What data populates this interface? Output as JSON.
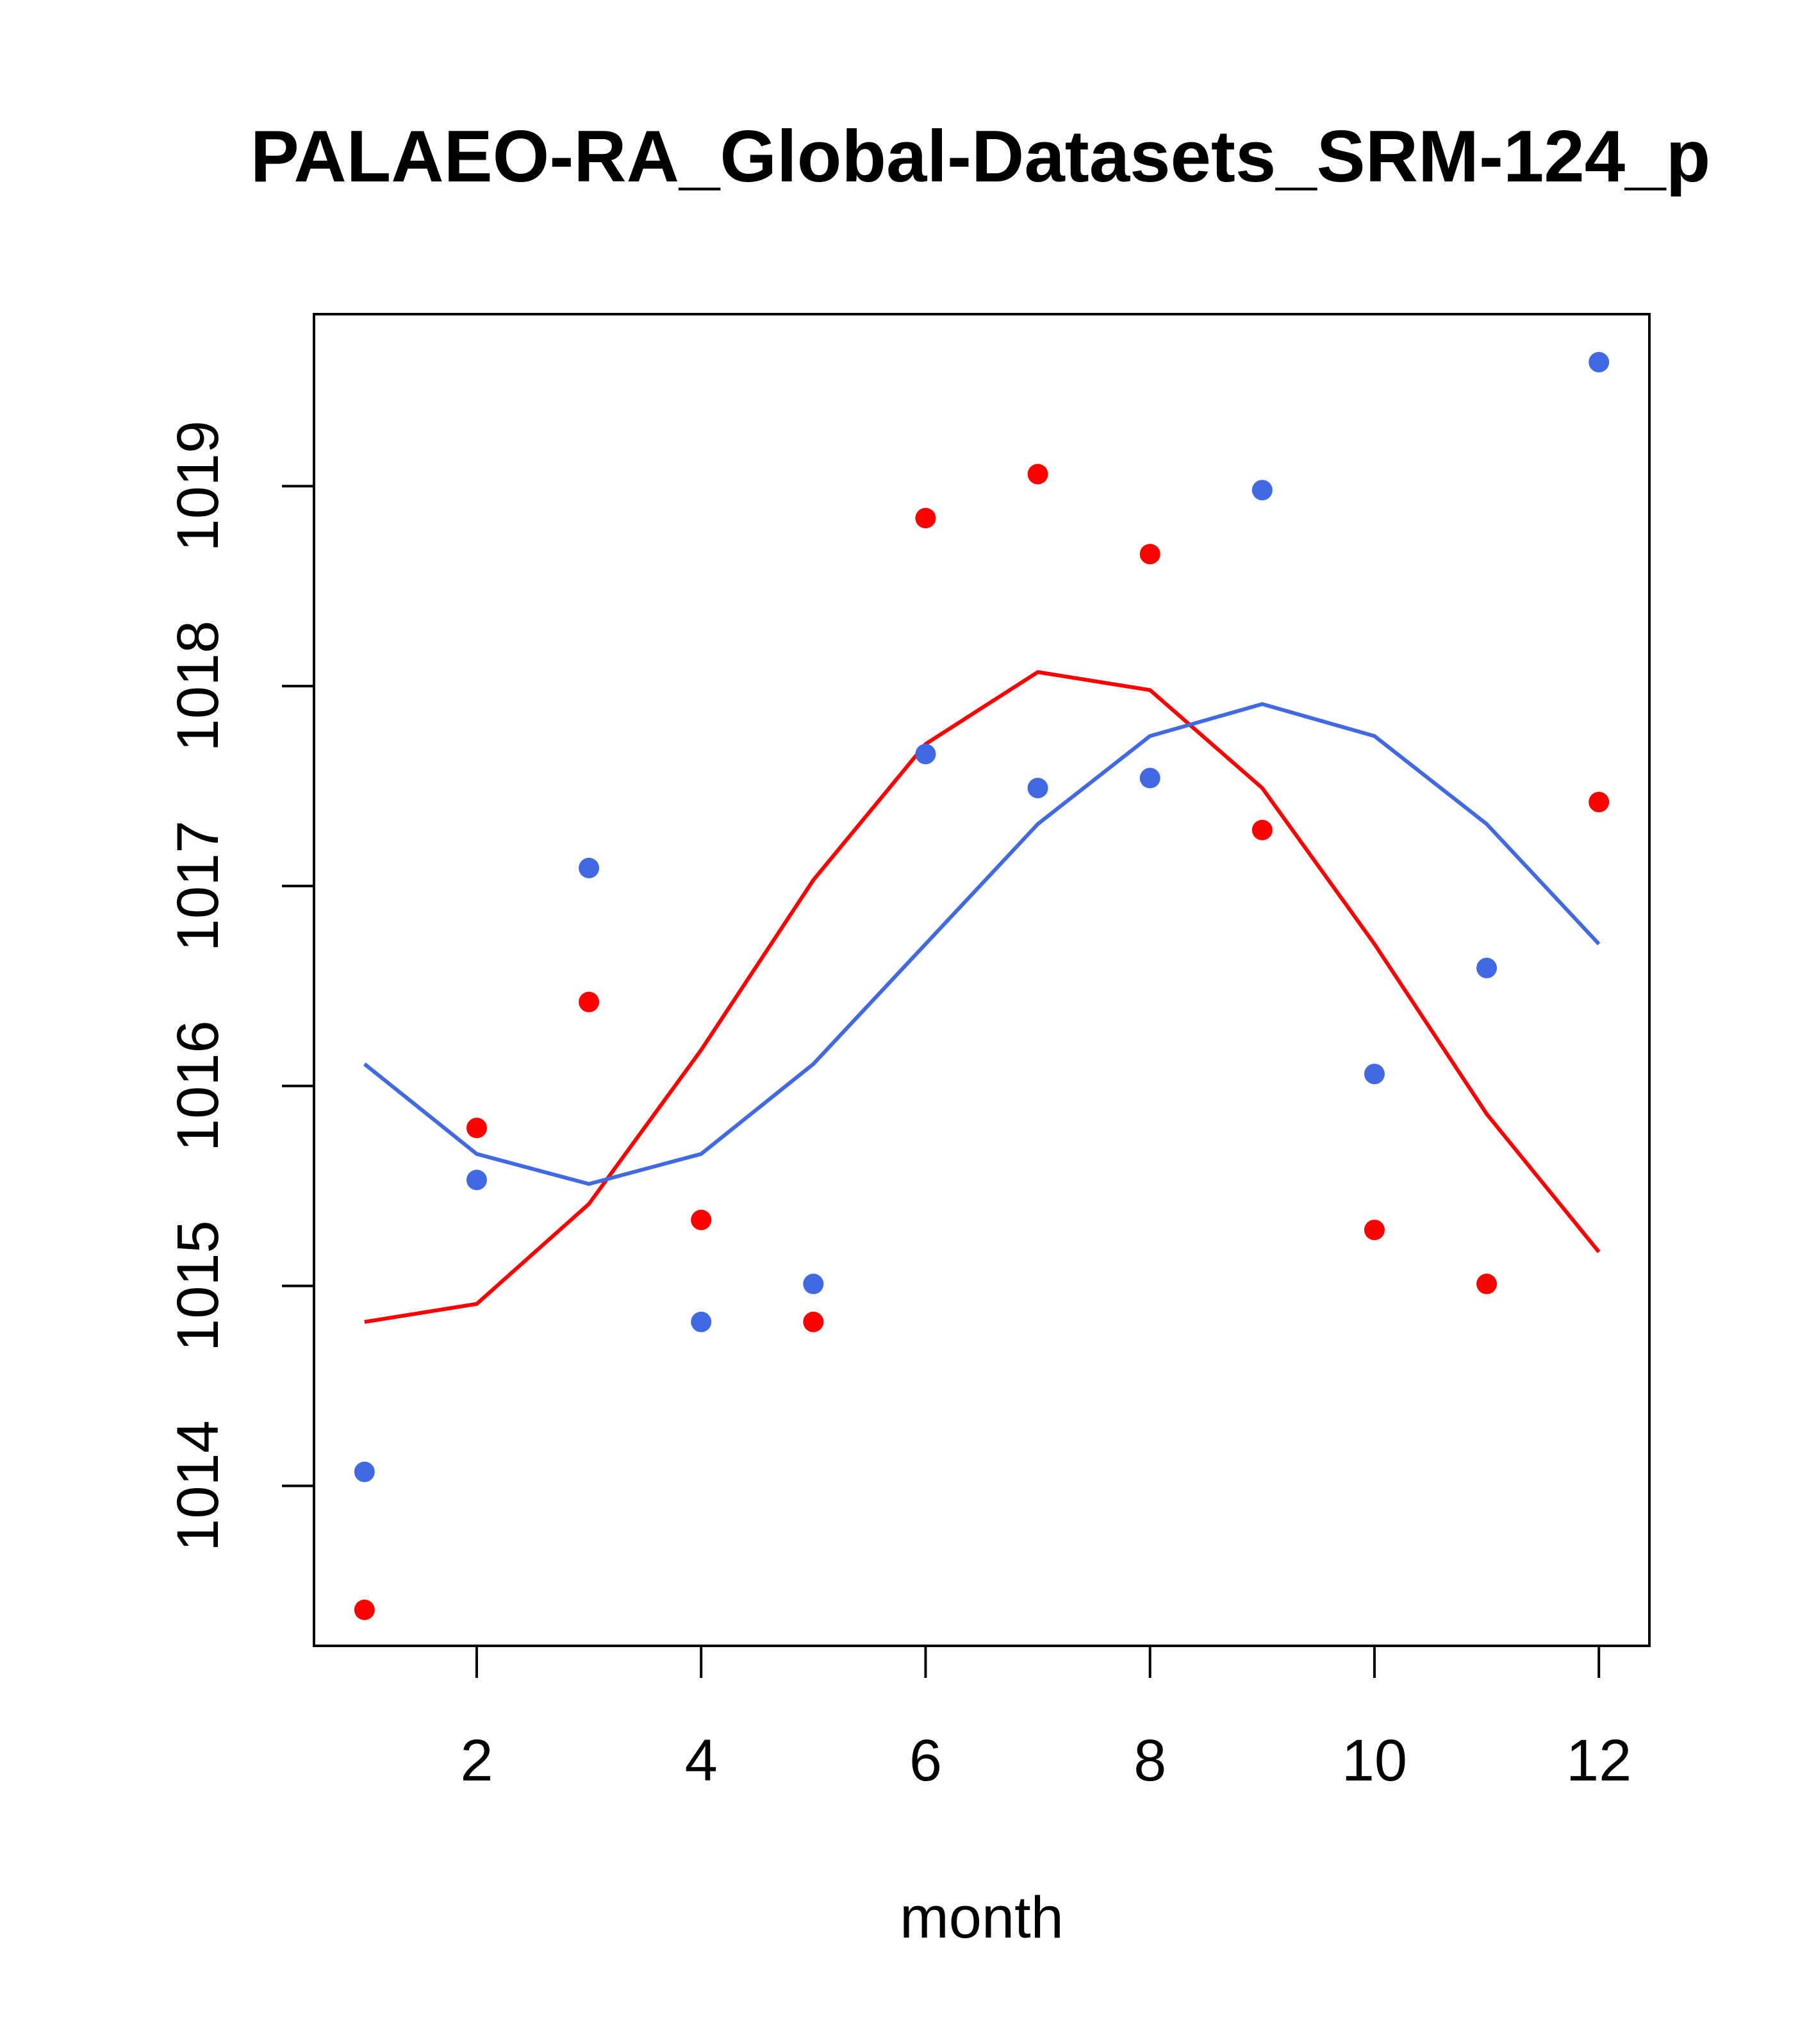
{
  "chart_data": {
    "type": "scatter+line",
    "title": "PALAEO-RA_Global-Datasets_SRM-124_p",
    "xlabel": "month",
    "ylabel": "",
    "xlim": [
      0.55,
      12.45
    ],
    "ylim": [
      1013.2,
      1019.86
    ],
    "xticks": [
      2,
      4,
      6,
      8,
      10,
      12
    ],
    "xtick_labels": [
      "2",
      "4",
      "6",
      "8",
      "10",
      "12"
    ],
    "yticks": [
      1014,
      1015,
      1016,
      1017,
      1018,
      1019
    ],
    "ytick_labels": [
      "1014",
      "1015",
      "1016",
      "1017",
      "1018",
      "1019"
    ],
    "grid": false,
    "series": [
      {
        "name": "red-points",
        "kind": "points",
        "color": "#FF0000",
        "x": [
          1,
          2,
          3,
          4,
          5,
          6,
          7,
          8,
          9,
          10,
          11,
          12
        ],
        "values": [
          1013.38,
          1015.79,
          1016.42,
          1015.33,
          1014.82,
          1018.84,
          1019.06,
          1018.66,
          1017.28,
          1015.28,
          1015.01,
          1017.42
        ]
      },
      {
        "name": "blue-points",
        "kind": "points",
        "color": "#4169E1",
        "x": [
          1,
          2,
          3,
          4,
          5,
          6,
          7,
          8,
          9,
          10,
          11,
          12
        ],
        "values": [
          1014.07,
          1015.53,
          1017.09,
          1014.82,
          1015.01,
          1017.66,
          1017.49,
          1017.54,
          1018.98,
          1016.06,
          1016.59,
          1019.62
        ]
      },
      {
        "name": "red-line",
        "kind": "line",
        "color": "#FF0000",
        "x": [
          1,
          2,
          3,
          4,
          5,
          6,
          7,
          8,
          9,
          10,
          11,
          12
        ],
        "values": [
          1014.82,
          1014.91,
          1015.41,
          1016.18,
          1017.03,
          1017.71,
          1018.07,
          1017.98,
          1017.49,
          1016.71,
          1015.86,
          1015.17
        ]
      },
      {
        "name": "blue-line",
        "kind": "line",
        "color": "#4169E1",
        "x": [
          1,
          2,
          3,
          4,
          5,
          6,
          7,
          8,
          9,
          10,
          11,
          12
        ],
        "values": [
          1016.11,
          1015.66,
          1015.51,
          1015.66,
          1016.11,
          1016.71,
          1017.31,
          1017.75,
          1017.91,
          1017.75,
          1017.31,
          1016.71
        ]
      }
    ]
  }
}
